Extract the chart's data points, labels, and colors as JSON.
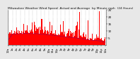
{
  "title_lines": [
    "Milwaukee Weather Wind Speed  Actual and Average  by Minute mph  (24 Hours)"
  ],
  "title_fontsize": 3.2,
  "bg_color": "#e8e8e8",
  "plot_bg_color": "#ffffff",
  "bar_color": "#ff0000",
  "avg_color": "#0000cc",
  "grid_color": "#888888",
  "n_points": 1440,
  "y_min": 0,
  "y_max": 25,
  "yticks": [
    5,
    10,
    15,
    20,
    25
  ],
  "ytick_labels": [
    "5",
    "10",
    "15",
    "20",
    "25"
  ],
  "ytick_fontsize": 3.0,
  "xtick_fontsize": 2.8,
  "num_xticks": 25,
  "avg_linewidth": 0.5,
  "bar_width": 1.0,
  "seed": 42
}
